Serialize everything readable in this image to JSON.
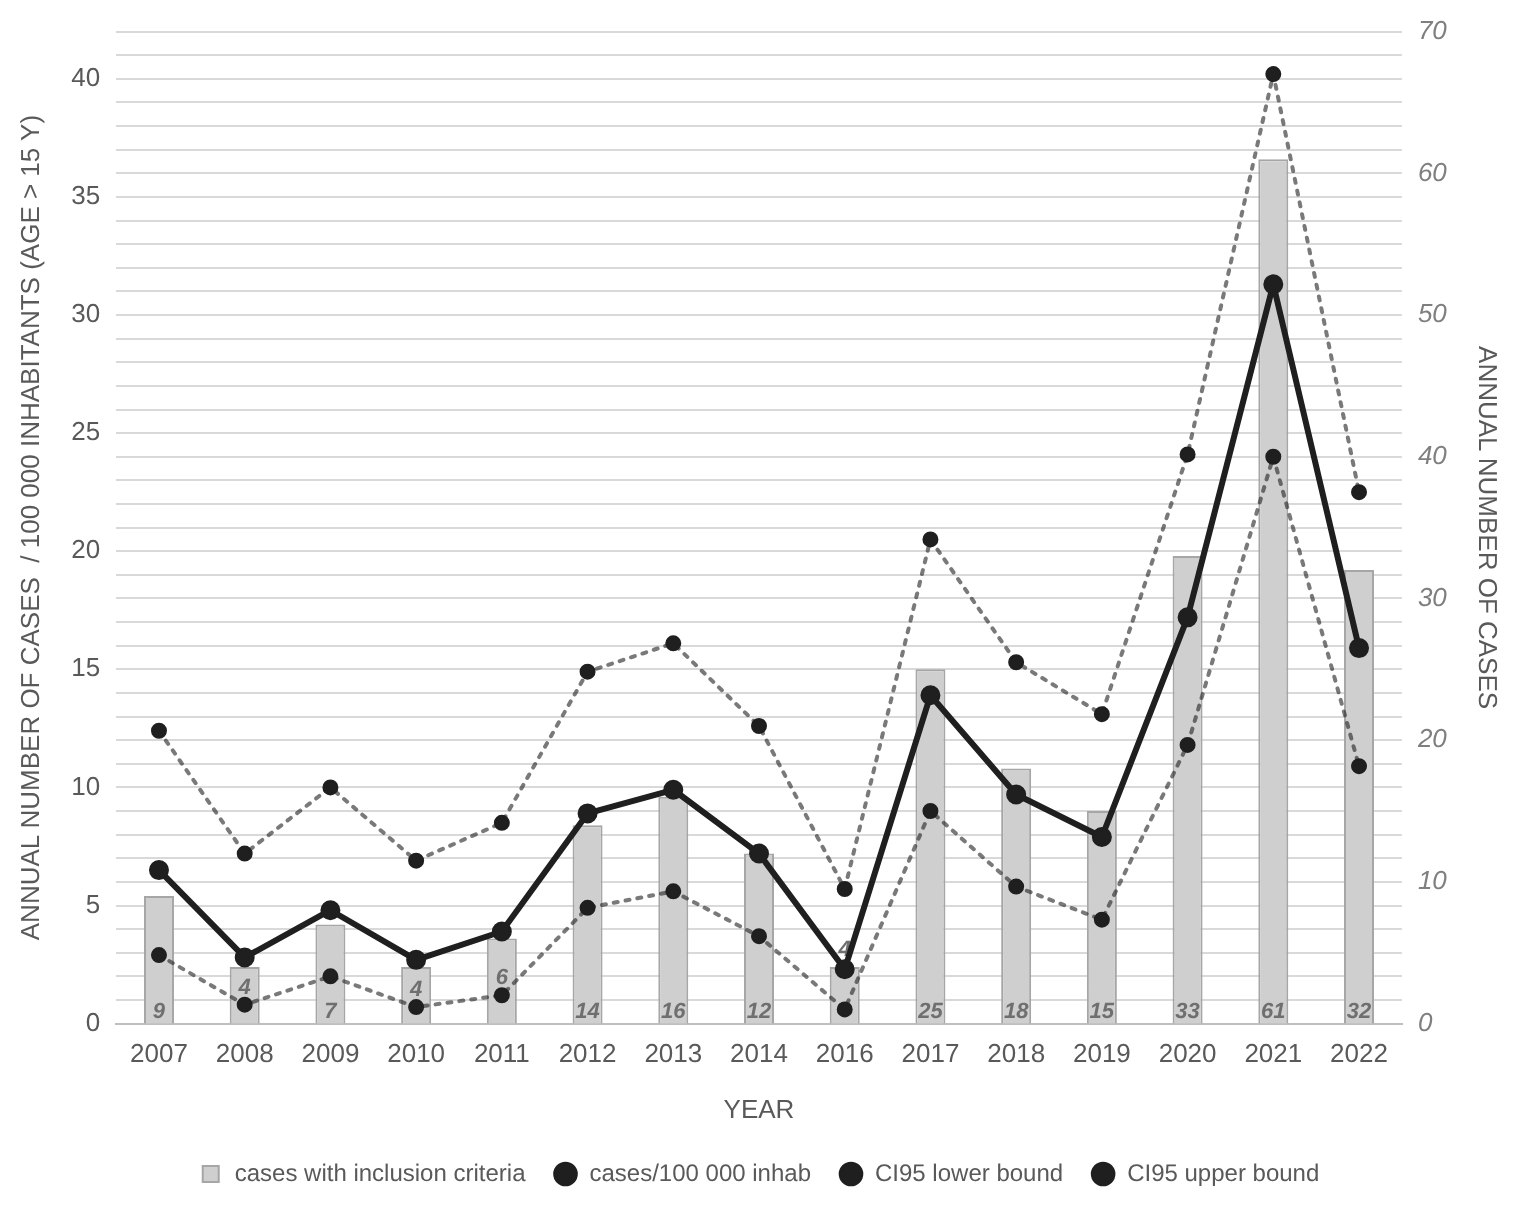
{
  "chart_data": {
    "type": "bar",
    "xlabel": "YEAR",
    "ylabel": "ANNUAL NUMBER OF CASES  / 100 000 INHABITANTS (AGE > 15 Y)",
    "y2label": "ANNUAL NUMBER OF CASES",
    "categories": [
      "2007",
      "2008",
      "2009",
      "2010",
      "2011",
      "2012",
      "2013",
      "2014",
      "2016",
      "2017",
      "2018",
      "2019",
      "2020",
      "2021",
      "2022"
    ],
    "series": [
      {
        "name": "cases with inclusion criteria",
        "axis": "y2",
        "color": "#cfcfcf",
        "values": [
          9,
          4,
          7,
          4,
          6,
          14,
          16,
          12,
          4,
          25,
          18,
          15,
          33,
          61,
          32
        ],
        "value_labels": [
          "9",
          "4",
          "7",
          "4",
          "6",
          "14",
          "16",
          "12",
          "4",
          "25",
          "18",
          "15",
          "33",
          "61",
          "32"
        ]
      },
      {
        "name": "cases/100 000 inhab",
        "type": "line",
        "color": "#1f1f1f",
        "marker": "circle",
        "line_style": "solid",
        "values": [
          6.5,
          2.8,
          4.8,
          2.7,
          3.9,
          8.9,
          9.9,
          7.2,
          2.3,
          13.9,
          9.7,
          7.9,
          17.2,
          31.3,
          15.9
        ]
      },
      {
        "name": "CI95 lower bound",
        "type": "line",
        "color": "#1f1f1f",
        "marker": "circle",
        "line_style": "dotted",
        "values": [
          2.9,
          0.8,
          2.0,
          0.7,
          1.2,
          4.9,
          5.6,
          3.7,
          0.6,
          9.0,
          5.8,
          4.4,
          11.8,
          24.0,
          10.9
        ]
      },
      {
        "name": "CI95 upper bound",
        "type": "line",
        "color": "#1f1f1f",
        "marker": "circle",
        "line_style": "dotted",
        "values": [
          12.4,
          7.2,
          10.0,
          6.9,
          8.5,
          14.9,
          16.1,
          12.6,
          5.7,
          20.5,
          15.3,
          13.1,
          24.1,
          40.2,
          22.5
        ]
      }
    ],
    "ylim": [
      0,
      42
    ],
    "yticks": [
      0,
      {
        "value": 1,
        "label": null
      },
      {
        "value": 2,
        "label": null
      },
      {
        "value": 3,
        "label": null
      },
      {
        "value": 4,
        "label": null
      },
      5,
      {
        "value": 6,
        "label": null
      },
      {
        "value": 7,
        "label": null
      },
      {
        "value": 8,
        "label": null
      },
      {
        "value": 9,
        "label": null
      },
      10,
      {
        "value": 11,
        "label": null
      },
      {
        "value": 12,
        "label": null
      },
      {
        "value": 13,
        "label": null
      },
      {
        "value": 14,
        "label": null
      },
      15,
      {
        "value": 16,
        "label": null
      },
      {
        "value": 17,
        "label": null
      },
      {
        "value": 18,
        "label": null
      },
      {
        "value": 19,
        "label": null
      },
      20,
      {
        "value": 21,
        "label": null
      },
      {
        "value": 22,
        "label": null
      },
      {
        "value": 23,
        "label": null
      },
      {
        "value": 24,
        "label": null
      },
      25,
      {
        "value": 26,
        "label": null
      },
      {
        "value": 27,
        "label": null
      },
      {
        "value": 28,
        "label": null
      },
      {
        "value": 29,
        "label": null
      },
      30,
      {
        "value": 31,
        "label": null
      },
      {
        "value": 32,
        "label": null
      },
      {
        "value": 33,
        "label": null
      },
      {
        "value": 34,
        "label": null
      },
      35,
      {
        "value": 36,
        "label": null
      },
      {
        "value": 37,
        "label": null
      },
      {
        "value": 38,
        "label": null
      },
      {
        "value": 39,
        "label": null
      },
      40,
      {
        "value": 41,
        "label": null
      },
      {
        "value": 42,
        "label": null
      }
    ],
    "y2lim": [
      0,
      70
    ],
    "y2ticks": [
      0,
      10,
      20,
      30,
      40,
      50,
      60,
      70
    ],
    "grid": "y",
    "legend": "bottom"
  }
}
